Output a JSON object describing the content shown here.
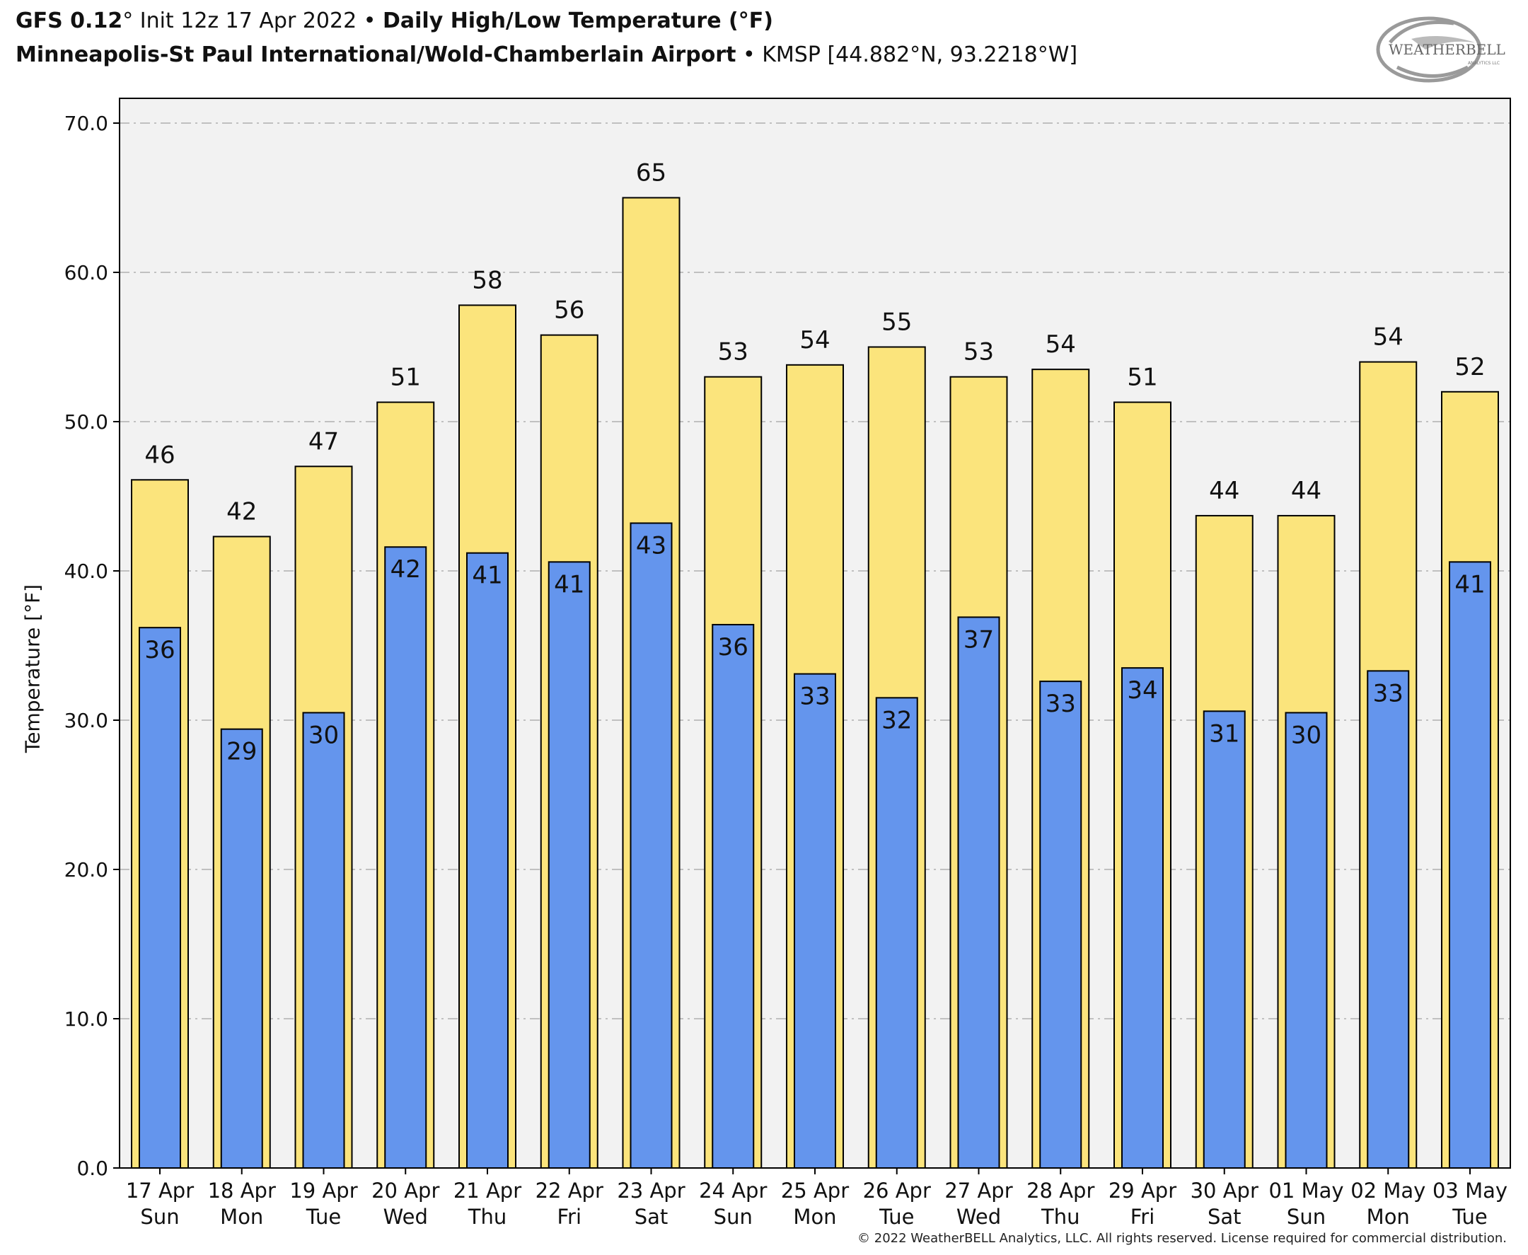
{
  "header": {
    "model": "GFS 0.12",
    "model_deg": "°",
    "init": "Init 12z 17 Apr 2022",
    "bullet": "•",
    "product": "Daily High/Low Temperature (°F)",
    "station_name": "Minneapolis-St Paul International/Wold-Chamberlain Airport",
    "station_info": "KMSP [44.882°N, 93.2218°W]"
  },
  "logo": {
    "text_main": "WEATHERBELL",
    "text_sub": "ANALYTICS LLC"
  },
  "copyright": "© 2022 WeatherBELL Analytics, LLC. All rights reserved. License required for commercial distribution.",
  "chart_data": {
    "type": "bar",
    "ylabel": "Temperature [°F]",
    "ylim": [
      0,
      70
    ],
    "yticks": [
      "0.0",
      "10.0",
      "20.0",
      "30.0",
      "40.0",
      "50.0",
      "60.0",
      "70.0"
    ],
    "grid": true,
    "categories": [
      [
        "17 Apr",
        "Sun"
      ],
      [
        "18 Apr",
        "Mon"
      ],
      [
        "19 Apr",
        "Tue"
      ],
      [
        "20 Apr",
        "Wed"
      ],
      [
        "21 Apr",
        "Thu"
      ],
      [
        "22 Apr",
        "Fri"
      ],
      [
        "23 Apr",
        "Sat"
      ],
      [
        "24 Apr",
        "Sun"
      ],
      [
        "25 Apr",
        "Mon"
      ],
      [
        "26 Apr",
        "Tue"
      ],
      [
        "27 Apr",
        "Wed"
      ],
      [
        "28 Apr",
        "Thu"
      ],
      [
        "29 Apr",
        "Fri"
      ],
      [
        "30 Apr",
        "Sat"
      ],
      [
        "01 May",
        "Sun"
      ],
      [
        "02 May",
        "Mon"
      ],
      [
        "03 May",
        "Tue"
      ]
    ],
    "series": [
      {
        "key": "high",
        "color": "#fbe47c",
        "values": [
          46.1,
          42.3,
          47.0,
          51.3,
          57.8,
          55.8,
          65.0,
          53.0,
          53.8,
          55.0,
          53.0,
          53.5,
          51.3,
          43.7,
          43.7,
          54.0,
          52.0
        ],
        "labels": [
          "46",
          "42",
          "47",
          "51",
          "58",
          "56",
          "65",
          "53",
          "54",
          "55",
          "53",
          "54",
          "51",
          "44",
          "44",
          "54",
          "52"
        ]
      },
      {
        "key": "low",
        "color": "#6495ed",
        "values": [
          36.2,
          29.4,
          30.5,
          41.6,
          41.2,
          40.6,
          43.2,
          36.4,
          33.1,
          31.5,
          36.9,
          32.6,
          33.5,
          30.6,
          30.5,
          33.3,
          40.6
        ],
        "labels": [
          "36",
          "29",
          "30",
          "42",
          "41",
          "41",
          "43",
          "36",
          "33",
          "32",
          "37",
          "33",
          "34",
          "31",
          "30",
          "33",
          "41"
        ]
      }
    ]
  }
}
